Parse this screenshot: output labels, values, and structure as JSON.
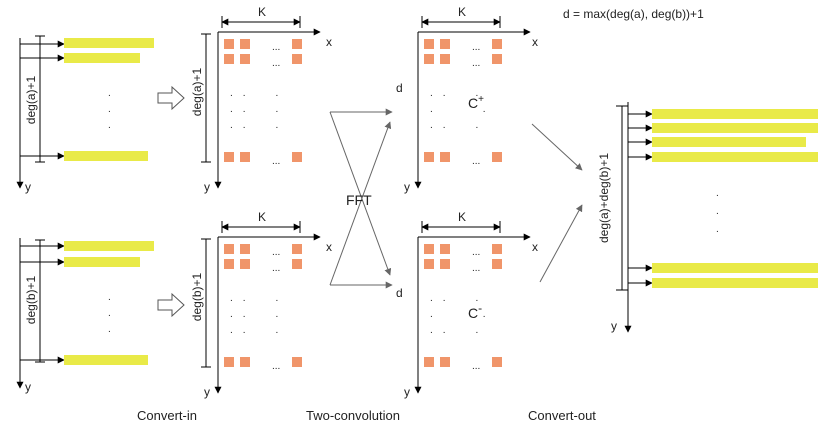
{
  "colors": {
    "bar": "#e9ea48",
    "cell": "#f0956a",
    "line": "#000000",
    "flow": "#666666"
  },
  "formula": "d = max(deg(a), deg(b))+1",
  "inputs": [
    {
      "height_label": "deg(a)+1",
      "y_label": "y"
    },
    {
      "height_label": "deg(b)+1",
      "y_label": "y"
    }
  ],
  "grids": [
    {
      "top_label": "K",
      "x_label": "x",
      "y_label": "y",
      "side_label": "deg(a)+1",
      "inner_label": ""
    },
    {
      "top_label": "K",
      "x_label": "x",
      "y_label": "y",
      "side_label": "deg(b)+1",
      "inner_label": ""
    },
    {
      "top_label": "K",
      "x_label": "x",
      "y_label": "y",
      "side_label": "d",
      "inner_label": "C",
      "inner_sup": "+"
    },
    {
      "top_label": "K",
      "x_label": "x",
      "y_label": "y",
      "side_label": "d",
      "inner_label": "C",
      "inner_sup": "-"
    }
  ],
  "fft_label": "FFT",
  "output": {
    "height_label": "deg(a)+deg(b)+1",
    "y_label": "y"
  },
  "captions": {
    "convert_in": "Convert-in",
    "two_convolution": "Two-convolution",
    "convert_out": "Convert-out"
  }
}
